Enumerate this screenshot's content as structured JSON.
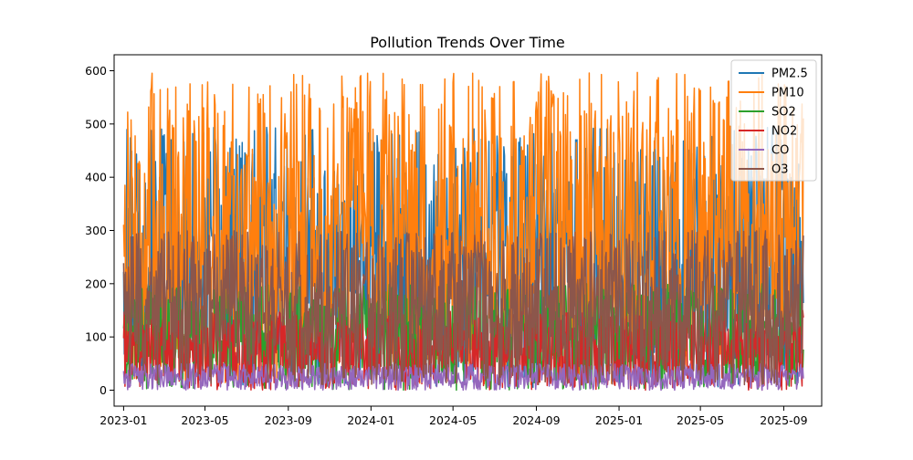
{
  "chart_data": {
    "type": "line",
    "title": "Pollution Trends Over Time",
    "xlabel": "",
    "ylabel": "",
    "x_range": [
      "2022-12-18",
      "2025-10-27"
    ],
    "x_ticks": [
      {
        "date": "2023-01-01",
        "label": "2023-01"
      },
      {
        "date": "2023-05-01",
        "label": "2023-05"
      },
      {
        "date": "2023-09-01",
        "label": "2023-09"
      },
      {
        "date": "2024-01-01",
        "label": "2024-01"
      },
      {
        "date": "2024-05-01",
        "label": "2024-05"
      },
      {
        "date": "2024-09-01",
        "label": "2024-09"
      },
      {
        "date": "2025-01-01",
        "label": "2025-01"
      },
      {
        "date": "2025-05-01",
        "label": "2025-05"
      },
      {
        "date": "2025-09-01",
        "label": "2025-09"
      }
    ],
    "ylim": [
      -30,
      630
    ],
    "y_ticks": [
      0,
      100,
      200,
      300,
      400,
      500,
      600
    ],
    "grid": false,
    "legend_position": "top-right",
    "start_date": "2023-01-01",
    "end_date": "2025-09-30",
    "series": [
      {
        "name": "PM2.5",
        "color": "#1f77b4",
        "min": 5,
        "max": 495
      },
      {
        "name": "PM10",
        "color": "#ff7f0e",
        "min": 10,
        "max": 597
      },
      {
        "name": "SO2",
        "color": "#2ca02c",
        "min": 0,
        "max": 200
      },
      {
        "name": "NO2",
        "color": "#d62728",
        "min": 0,
        "max": 150
      },
      {
        "name": "CO",
        "color": "#9467bd",
        "min": 0,
        "max": 50
      },
      {
        "name": "O3",
        "color": "#8c564b",
        "min": 10,
        "max": 300
      }
    ]
  }
}
